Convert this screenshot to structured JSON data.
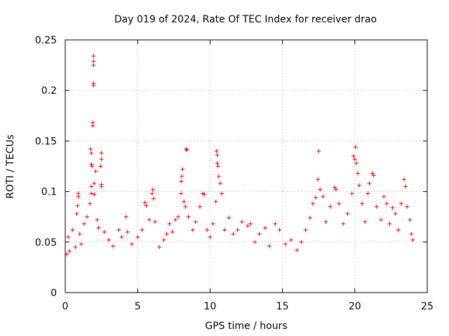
{
  "chart_data": {
    "type": "scatter",
    "title": "Day 019 of 2024, Rate Of TEC Index for receiver drao",
    "xlabel": "GPS time / hours",
    "ylabel": "ROTI / TECUs",
    "xlim": [
      0,
      25
    ],
    "ylim": [
      0,
      0.25
    ],
    "x_ticks": [
      "0",
      "5",
      "10",
      "15",
      "20",
      "25"
    ],
    "y_ticks": [
      "0",
      "0.05",
      "0.1",
      "0.15",
      "0.2",
      "0.25"
    ],
    "grid": true,
    "marker": "+",
    "color": "#ff0000",
    "series": [
      {
        "name": "",
        "points": [
          [
            0.1,
            0.038
          ],
          [
            0.2,
            0.055
          ],
          [
            0.3,
            0.041
          ],
          [
            0.5,
            0.062
          ],
          [
            0.7,
            0.045
          ],
          [
            0.8,
            0.078
          ],
          [
            0.9,
            0.098
          ],
          [
            0.9,
            0.095
          ],
          [
            0.85,
            0.086
          ],
          [
            1.0,
            0.058
          ],
          [
            1.1,
            0.048
          ],
          [
            1.3,
            0.068
          ],
          [
            1.5,
            0.075
          ],
          [
            1.7,
            0.088
          ],
          [
            1.8,
            0.098
          ],
          [
            1.8,
            0.105
          ],
          [
            1.75,
            0.142
          ],
          [
            1.8,
            0.138
          ],
          [
            1.8,
            0.127
          ],
          [
            1.85,
            0.125
          ],
          [
            1.9,
            0.165
          ],
          [
            1.9,
            0.168
          ],
          [
            1.95,
            0.205
          ],
          [
            1.95,
            0.207
          ],
          [
            1.95,
            0.225
          ],
          [
            1.95,
            0.229
          ],
          [
            1.95,
            0.234
          ],
          [
            2.0,
            0.108
          ],
          [
            2.0,
            0.097
          ],
          [
            2.1,
            0.12
          ],
          [
            2.2,
            0.072
          ],
          [
            2.3,
            0.064
          ],
          [
            2.5,
            0.138
          ],
          [
            2.5,
            0.132
          ],
          [
            2.45,
            0.125
          ],
          [
            2.5,
            0.107
          ],
          [
            2.5,
            0.105
          ],
          [
            2.7,
            0.06
          ],
          [
            3.0,
            0.052
          ],
          [
            3.3,
            0.046
          ],
          [
            3.7,
            0.062
          ],
          [
            3.9,
            0.055
          ],
          [
            4.2,
            0.075
          ],
          [
            4.3,
            0.06
          ],
          [
            4.6,
            0.048
          ],
          [
            5.0,
            0.055
          ],
          [
            5.3,
            0.062
          ],
          [
            5.5,
            0.089
          ],
          [
            5.6,
            0.086
          ],
          [
            5.8,
            0.072
          ],
          [
            6.0,
            0.098
          ],
          [
            6.05,
            0.102
          ],
          [
            6.1,
            0.093
          ],
          [
            6.2,
            0.07
          ],
          [
            6.5,
            0.045
          ],
          [
            6.8,
            0.052
          ],
          [
            7.0,
            0.058
          ],
          [
            7.2,
            0.068
          ],
          [
            7.4,
            0.06
          ],
          [
            7.6,
            0.072
          ],
          [
            7.8,
            0.075
          ],
          [
            8.0,
            0.098
          ],
          [
            8.0,
            0.11
          ],
          [
            8.05,
            0.115
          ],
          [
            8.1,
            0.122
          ],
          [
            8.2,
            0.09
          ],
          [
            8.3,
            0.085
          ],
          [
            8.35,
            0.142
          ],
          [
            8.4,
            0.141
          ],
          [
            8.5,
            0.075
          ],
          [
            8.8,
            0.062
          ],
          [
            9.0,
            0.07
          ],
          [
            9.3,
            0.085
          ],
          [
            9.5,
            0.098
          ],
          [
            9.6,
            0.097
          ],
          [
            9.8,
            0.062
          ],
          [
            10.0,
            0.055
          ],
          [
            10.2,
            0.068
          ],
          [
            10.4,
            0.09
          ],
          [
            10.45,
            0.14
          ],
          [
            10.5,
            0.136
          ],
          [
            10.5,
            0.128
          ],
          [
            10.55,
            0.125
          ],
          [
            10.6,
            0.115
          ],
          [
            10.7,
            0.108
          ],
          [
            10.8,
            0.098
          ],
          [
            11.0,
            0.062
          ],
          [
            11.3,
            0.074
          ],
          [
            11.6,
            0.058
          ],
          [
            11.9,
            0.062
          ],
          [
            12.2,
            0.07
          ],
          [
            12.6,
            0.066
          ],
          [
            12.8,
            0.068
          ],
          [
            13.1,
            0.05
          ],
          [
            13.4,
            0.058
          ],
          [
            13.8,
            0.064
          ],
          [
            14.1,
            0.046
          ],
          [
            14.5,
            0.068
          ],
          [
            14.8,
            0.062
          ],
          [
            15.2,
            0.048
          ],
          [
            15.6,
            0.052
          ],
          [
            16.0,
            0.042
          ],
          [
            16.3,
            0.05
          ],
          [
            16.6,
            0.062
          ],
          [
            16.9,
            0.074
          ],
          [
            17.1,
            0.088
          ],
          [
            17.3,
            0.094
          ],
          [
            17.5,
            0.14
          ],
          [
            17.45,
            0.112
          ],
          [
            17.6,
            0.102
          ],
          [
            17.8,
            0.095
          ],
          [
            18.0,
            0.07
          ],
          [
            18.3,
            0.085
          ],
          [
            18.6,
            0.104
          ],
          [
            18.7,
            0.102
          ],
          [
            18.9,
            0.088
          ],
          [
            19.2,
            0.068
          ],
          [
            19.5,
            0.078
          ],
          [
            19.8,
            0.098
          ],
          [
            19.9,
            0.135
          ],
          [
            20.0,
            0.132
          ],
          [
            20.05,
            0.144
          ],
          [
            20.1,
            0.128
          ],
          [
            20.2,
            0.118
          ],
          [
            20.3,
            0.106
          ],
          [
            20.5,
            0.088
          ],
          [
            20.7,
            0.07
          ],
          [
            20.9,
            0.098
          ],
          [
            21.0,
            0.108
          ],
          [
            21.2,
            0.118
          ],
          [
            21.3,
            0.116
          ],
          [
            21.5,
            0.085
          ],
          [
            21.8,
            0.072
          ],
          [
            22.0,
            0.095
          ],
          [
            22.2,
            0.088
          ],
          [
            22.4,
            0.068
          ],
          [
            22.6,
            0.084
          ],
          [
            22.8,
            0.078
          ],
          [
            23.0,
            0.062
          ],
          [
            23.2,
            0.088
          ],
          [
            23.4,
            0.112
          ],
          [
            23.5,
            0.105
          ],
          [
            23.6,
            0.085
          ],
          [
            23.8,
            0.072
          ],
          [
            23.9,
            0.058
          ],
          [
            24.0,
            0.052
          ]
        ]
      }
    ]
  }
}
